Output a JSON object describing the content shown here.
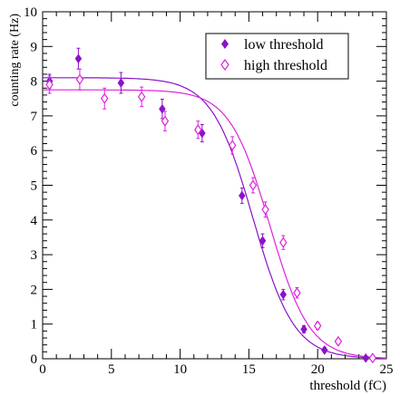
{
  "chart_data": {
    "type": "scatter",
    "xlabel": "threshold (fC)",
    "ylabel": "counting rate (Hz)",
    "xlim": [
      0,
      25
    ],
    "ylim": [
      0,
      10
    ],
    "x_ticks": [
      "0",
      "5",
      "10",
      "15",
      "20",
      "25"
    ],
    "y_ticks": [
      "0",
      "1",
      "2",
      "3",
      "4",
      "5",
      "6",
      "7",
      "8",
      "9",
      "10"
    ],
    "grid": false,
    "legend_position": "top-right",
    "colors": {
      "low": "#8b12c9",
      "high": "#dd22dd"
    },
    "series": [
      {
        "name": "low threshold",
        "marker": "filled-diamond",
        "points": [
          {
            "x": 0.5,
            "y": 8.0,
            "err": 0.2
          },
          {
            "x": 2.6,
            "y": 8.65,
            "err": 0.3
          },
          {
            "x": 5.7,
            "y": 7.95,
            "err": 0.3
          },
          {
            "x": 8.7,
            "y": 7.2,
            "err": 0.28
          },
          {
            "x": 11.6,
            "y": 6.5,
            "err": 0.25
          },
          {
            "x": 14.5,
            "y": 4.7,
            "err": 0.22
          },
          {
            "x": 16.0,
            "y": 3.4,
            "err": 0.2
          },
          {
            "x": 17.5,
            "y": 1.85,
            "err": 0.15
          },
          {
            "x": 19.0,
            "y": 0.85,
            "err": 0.1
          },
          {
            "x": 20.5,
            "y": 0.25,
            "err": 0.07
          },
          {
            "x": 23.5,
            "y": 0.02,
            "err": 0.03
          }
        ],
        "fit": {
          "a": 8.1,
          "x0": 15.3,
          "w": 1.5
        }
      },
      {
        "name": "high threshold",
        "marker": "open-diamond",
        "points": [
          {
            "x": 0.5,
            "y": 7.9,
            "err": 0.25
          },
          {
            "x": 2.7,
            "y": 8.05,
            "err": 0.3
          },
          {
            "x": 4.5,
            "y": 7.5,
            "err": 0.3
          },
          {
            "x": 7.2,
            "y": 7.55,
            "err": 0.28
          },
          {
            "x": 8.9,
            "y": 6.85,
            "err": 0.28
          },
          {
            "x": 11.3,
            "y": 6.6,
            "err": 0.25
          },
          {
            "x": 13.8,
            "y": 6.15,
            "err": 0.25
          },
          {
            "x": 15.3,
            "y": 5.0,
            "err": 0.22
          },
          {
            "x": 16.2,
            "y": 4.3,
            "err": 0.22
          },
          {
            "x": 17.5,
            "y": 3.35,
            "err": 0.2
          },
          {
            "x": 18.5,
            "y": 1.9,
            "err": 0.15
          },
          {
            "x": 20.0,
            "y": 0.95,
            "err": 0.1
          },
          {
            "x": 21.5,
            "y": 0.5,
            "err": 0.08
          },
          {
            "x": 24.0,
            "y": 0.02,
            "err": 0.03
          }
        ],
        "fit": {
          "a": 7.75,
          "x0": 16.5,
          "w": 1.45
        }
      }
    ]
  }
}
